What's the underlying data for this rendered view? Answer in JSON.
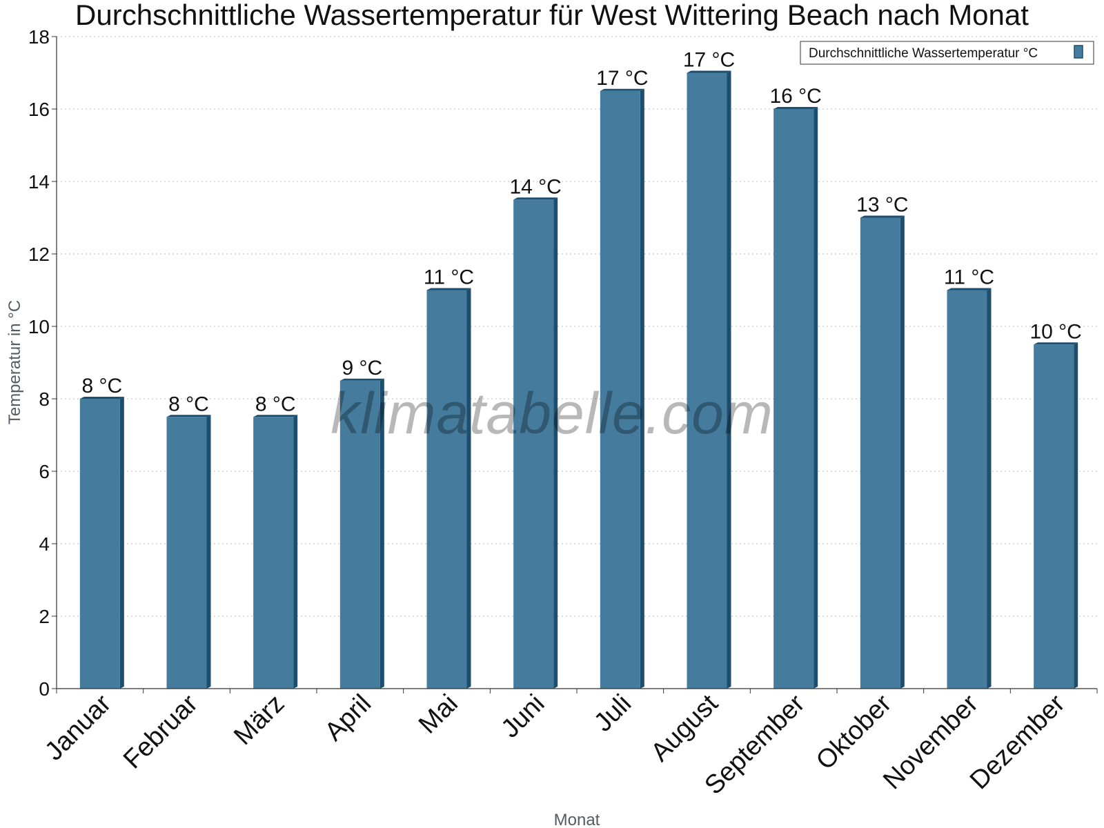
{
  "chart_data": {
    "type": "bar",
    "title": "Durchschnittliche Wassertemperatur für West Wittering Beach nach Monat",
    "xlabel": "Monat",
    "ylabel": "Temperatur in °C",
    "categories": [
      "Januar",
      "Februar",
      "März",
      "April",
      "Mai",
      "Juni",
      "Juli",
      "August",
      "September",
      "Oktober",
      "November",
      "Dezember"
    ],
    "series": [
      {
        "name": "Durchschnittliche Wassertemperatur °C",
        "values": [
          8.0,
          7.5,
          7.5,
          8.5,
          11.0,
          13.5,
          16.5,
          17.0,
          16.0,
          13.0,
          11.0,
          9.5
        ],
        "labels": [
          "8 °C",
          "8 °C",
          "8 °C",
          "9 °C",
          "11 °C",
          "14 °C",
          "17 °C",
          "17 °C",
          "16 °C",
          "13 °C",
          "11 °C",
          "10 °C"
        ]
      }
    ],
    "ylim": [
      0,
      18
    ],
    "yticks": [
      0,
      2,
      4,
      6,
      8,
      10,
      12,
      14,
      16,
      18
    ],
    "grid": true,
    "legend_position": "top-right",
    "colors": {
      "bar": "#457b9d",
      "bar_side": "#1d4e6e",
      "grid": "#bbbbbb",
      "axis": "#333333"
    }
  },
  "watermark": "klimatabelle.com"
}
